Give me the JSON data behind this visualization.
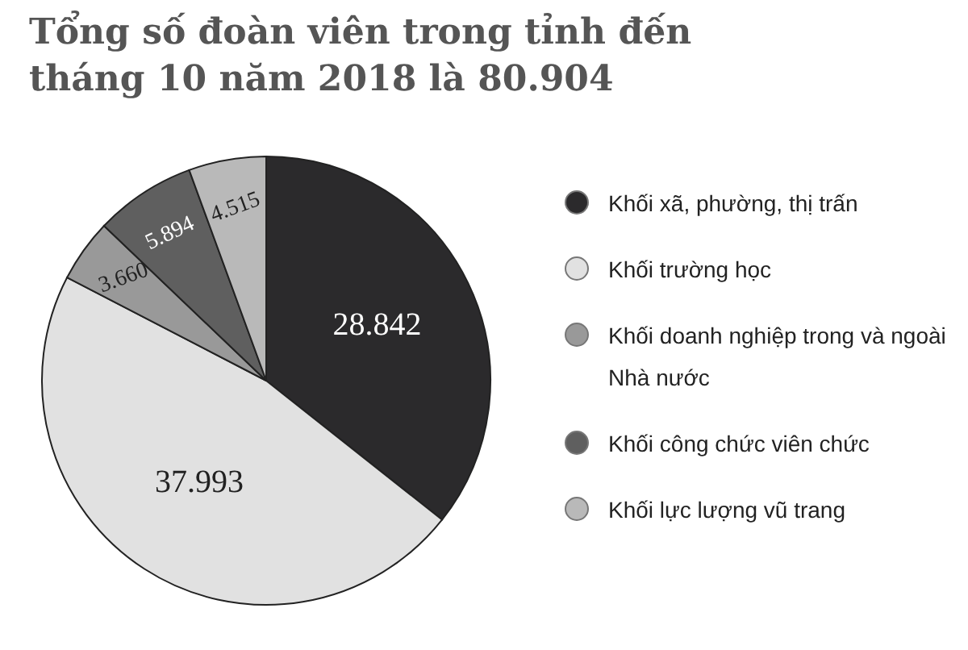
{
  "chart_data": {
    "type": "pie",
    "title": "Tổng số đoàn viên trong tỉnh đến tháng 10 năm 2018 là 80.904",
    "categories": [
      "Khối xã, phường, thị trấn",
      "Khối trường học",
      "Khối doanh nghiệp trong và ngoài Nhà nước",
      "Khối công chức viên chức",
      "Khối lực lượng vũ trang"
    ],
    "values": [
      28842,
      37993,
      3660,
      5894,
      4515
    ],
    "value_labels": [
      "28.842",
      "37.993",
      "3.660",
      "5.894",
      "4.515"
    ],
    "colors": [
      "#2b2a2c",
      "#e1e1e1",
      "#999999",
      "#5f5f5f",
      "#b9b9b9"
    ],
    "legend": "right"
  }
}
